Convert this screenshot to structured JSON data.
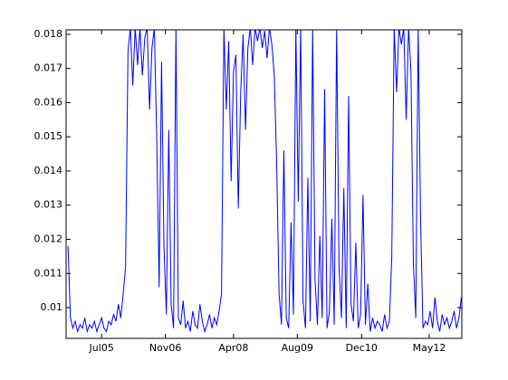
{
  "chart_data": {
    "type": "line",
    "color": "#0000ff",
    "box": true,
    "x": [
      2004.8,
      2004.85,
      2004.9,
      2004.95,
      2005,
      2005.05,
      2005.1,
      2005.15,
      2005.2,
      2005.25,
      2005.3,
      2005.35,
      2005.4,
      2005.45,
      2005.5,
      2005.55,
      2005.6,
      2005.65,
      2005.7,
      2005.75,
      2005.8,
      2005.85,
      2005.9,
      2005.95,
      2006,
      2006.05,
      2006.1,
      2006.15,
      2006.2,
      2006.25,
      2006.3,
      2006.35,
      2006.4,
      2006.45,
      2006.5,
      2006.55,
      2006.6,
      2006.65,
      2006.7,
      2006.75,
      2006.8,
      2006.85,
      2006.9,
      2006.95,
      2007,
      2007.05,
      2007.1,
      2007.15,
      2007.2,
      2007.25,
      2007.3,
      2007.35,
      2007.4,
      2007.45,
      2007.5,
      2007.55,
      2007.6,
      2007.65,
      2007.7,
      2007.75,
      2007.8,
      2007.85,
      2007.9,
      2007.95,
      2008,
      2008.05,
      2008.1,
      2008.15,
      2008.2,
      2008.25,
      2008.3,
      2008.35,
      2008.4,
      2008.45,
      2008.5,
      2008.55,
      2008.6,
      2008.65,
      2008.7,
      2008.75,
      2008.8,
      2008.85,
      2008.9,
      2008.95,
      2009,
      2009.05,
      2009.1,
      2009.15,
      2009.2,
      2009.25,
      2009.3,
      2009.35,
      2009.4,
      2009.45,
      2009.5,
      2009.55,
      2009.6,
      2009.65,
      2009.7,
      2009.75,
      2009.8,
      2009.85,
      2009.9,
      2009.95,
      2010,
      2010.05,
      2010.1,
      2010.15,
      2010.2,
      2010.25,
      2010.3,
      2010.35,
      2010.4,
      2010.45,
      2010.5,
      2010.55,
      2010.6,
      2010.65,
      2010.7,
      2010.75,
      2010.8,
      2010.85,
      2010.9,
      2010.95,
      2011,
      2011.05,
      2011.1,
      2011.15,
      2011.2,
      2011.25,
      2011.3,
      2011.35,
      2011.4,
      2011.45,
      2011.5,
      2011.55,
      2011.6,
      2011.65,
      2011.7,
      2011.75,
      2011.8,
      2011.85,
      2011.9,
      2011.95,
      2012,
      2012.05,
      2012.1,
      2012.15,
      2012.2,
      2012.25,
      2012.3,
      2012.35,
      2012.4,
      2012.45,
      2012.5,
      2012.55,
      2012.6,
      2012.65,
      2012.7,
      2012.75,
      2012.8,
      2012.85,
      2012.9,
      2012.95,
      2013
    ],
    "values": [
      0.0118,
      0.0097,
      0.0094,
      0.0096,
      0.0093,
      0.0095,
      0.0094,
      0.0097,
      0.0093,
      0.0095,
      0.0094,
      0.0096,
      0.0093,
      0.0095,
      0.0097,
      0.0094,
      0.0093,
      0.0096,
      0.0095,
      0.0098,
      0.0096,
      0.0101,
      0.0097,
      0.0104,
      0.0112,
      0.0175,
      0.0182,
      0.0165,
      0.0182,
      0.0171,
      0.0182,
      0.0168,
      0.0179,
      0.0182,
      0.0158,
      0.0176,
      0.0182,
      0.0149,
      0.0106,
      0.0172,
      0.0118,
      0.0098,
      0.0152,
      0.0101,
      0.0094,
      0.0182,
      0.0097,
      0.0095,
      0.0102,
      0.0094,
      0.0096,
      0.0093,
      0.0099,
      0.0095,
      0.0094,
      0.0101,
      0.0096,
      0.0093,
      0.0095,
      0.0098,
      0.0094,
      0.0097,
      0.0095,
      0.0099,
      0.0104,
      0.0182,
      0.0158,
      0.0178,
      0.0137,
      0.0169,
      0.0174,
      0.0129,
      0.0163,
      0.018,
      0.0152,
      0.0176,
      0.0182,
      0.0171,
      0.0182,
      0.0178,
      0.0182,
      0.0176,
      0.0181,
      0.0173,
      0.0182,
      0.0177,
      0.0168,
      0.0142,
      0.0104,
      0.0095,
      0.0146,
      0.0097,
      0.0094,
      0.0125,
      0.0098,
      0.0182,
      0.0131,
      0.0182,
      0.0102,
      0.0094,
      0.0138,
      0.0096,
      0.0182,
      0.0108,
      0.0095,
      0.0121,
      0.0097,
      0.0164,
      0.0094,
      0.0099,
      0.0126,
      0.0095,
      0.0182,
      0.0112,
      0.0097,
      0.0135,
      0.0094,
      0.0162,
      0.0101,
      0.0096,
      0.0119,
      0.0094,
      0.0098,
      0.0133,
      0.0095,
      0.0107,
      0.0093,
      0.0097,
      0.0094,
      0.0096,
      0.0095,
      0.0093,
      0.0098,
      0.0094,
      0.0096,
      0.0115,
      0.0182,
      0.0163,
      0.0182,
      0.0177,
      0.0182,
      0.0155,
      0.0182,
      0.0169,
      0.0113,
      0.0097,
      0.0182,
      0.0126,
      0.0094,
      0.0096,
      0.0095,
      0.0099,
      0.0094,
      0.0103,
      0.0096,
      0.0093,
      0.0098,
      0.0095,
      0.0097,
      0.0094,
      0.0096,
      0.0099,
      0.0094,
      0.0097,
      0.0103
    ],
    "xlim": [
      2004.76,
      2013.01
    ],
    "xticks": [
      {
        "value": 2005.5,
        "label": "Jul05"
      },
      {
        "value": 2006.83,
        "label": "Nov06"
      },
      {
        "value": 2008.25,
        "label": "Apr08"
      },
      {
        "value": 2009.58,
        "label": "Aug09"
      },
      {
        "value": 2010.92,
        "label": "Dec10"
      },
      {
        "value": 2012.33,
        "label": "May12"
      }
    ],
    "ylim": [
      0.0091,
      0.01813
    ],
    "yticks": [
      0.01,
      0.011,
      0.012,
      0.013,
      0.014,
      0.015,
      0.016,
      0.017,
      0.018
    ]
  }
}
